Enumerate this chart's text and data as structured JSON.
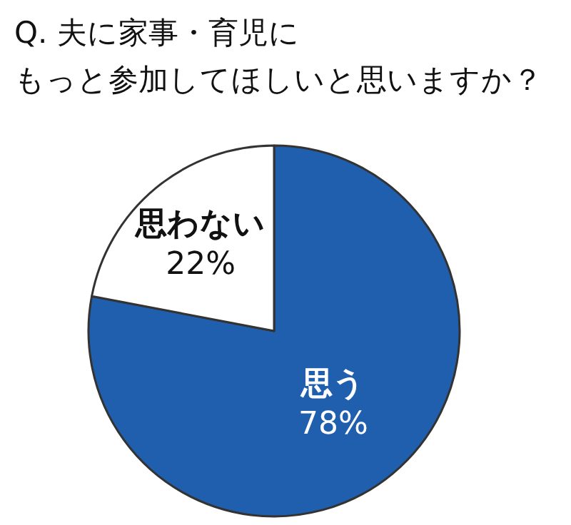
{
  "chart_data": {
    "type": "pie",
    "title": "Q. 夫に家事・育児に",
    "subtitle": "もっと参加してほしいと思いますか？",
    "categories": [
      "思う",
      "思わない"
    ],
    "values": [
      78,
      22
    ],
    "colors": [
      "#1f5fae",
      "#ffffff"
    ],
    "value_labels": [
      "78%",
      "22%"
    ]
  }
}
